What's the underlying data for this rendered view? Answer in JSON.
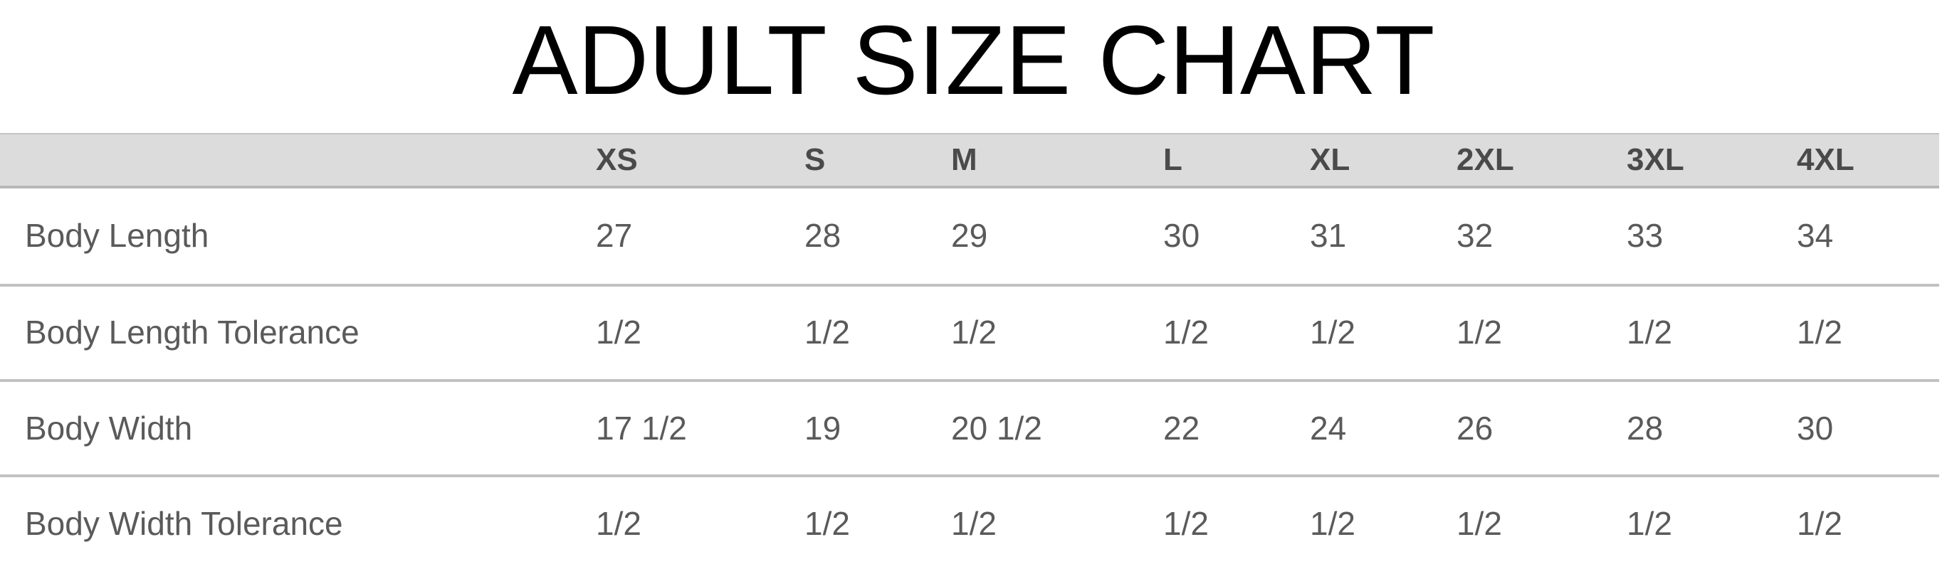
{
  "title": "ADULT SIZE CHART",
  "columns": [
    "XS",
    "S",
    "M",
    "L",
    "XL",
    "2XL",
    "3XL",
    "4XL"
  ],
  "rows": [
    {
      "label": "Body Length",
      "values": [
        "27",
        "28",
        "29",
        "30",
        "31",
        "32",
        "33",
        "34"
      ]
    },
    {
      "label": "Body Length Tolerance",
      "values": [
        "1/2",
        "1/2",
        "1/2",
        "1/2",
        "1/2",
        "1/2",
        "1/2",
        "1/2"
      ]
    },
    {
      "label": "Body Width",
      "values": [
        "17 1/2",
        "19",
        "20 1/2",
        "22",
        "24",
        "26",
        "28",
        "30"
      ]
    },
    {
      "label": "Body Width Tolerance",
      "values": [
        "1/2",
        "1/2",
        "1/2",
        "1/2",
        "1/2",
        "1/2",
        "1/2",
        "1/2"
      ]
    }
  ]
}
